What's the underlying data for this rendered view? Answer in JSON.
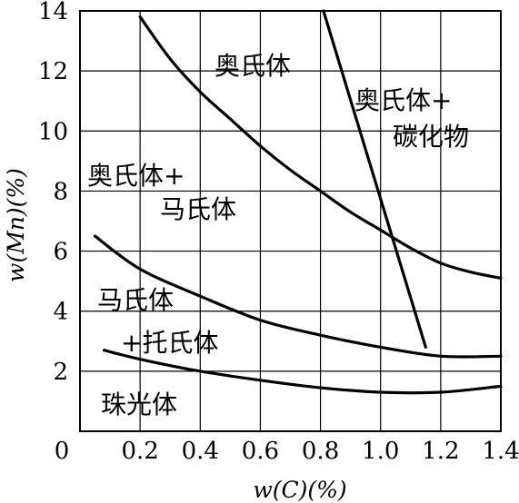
{
  "chart_data": {
    "type": "line",
    "title": "",
    "xlabel": "w(C)(%)",
    "ylabel": "w(Mn)(%)",
    "xlim": [
      0,
      1.4
    ],
    "ylim": [
      0,
      14
    ],
    "x_ticks": [
      "0",
      "0.2",
      "0.4",
      "0.6",
      "0.8",
      "1.0",
      "1.2",
      "1.4"
    ],
    "y_ticks": [
      "2",
      "4",
      "6",
      "8",
      "10",
      "12",
      "14"
    ],
    "grid": true,
    "series": [
      {
        "x": [
          0.2,
          0.3,
          0.4,
          0.5,
          0.6,
          0.7,
          0.8,
          0.9,
          1.0,
          1.1,
          1.2,
          1.3,
          1.4
        ],
        "y": [
          13.8,
          12.4,
          11.3,
          10.4,
          9.5,
          8.7,
          8.0,
          7.3,
          6.7,
          6.1,
          5.6,
          5.3,
          5.1
        ]
      },
      {
        "x": [
          0.81,
          1.15
        ],
        "y": [
          14.0,
          2.8
        ]
      },
      {
        "x": [
          0.05,
          0.2,
          0.4,
          0.6,
          0.8,
          1.0,
          1.2,
          1.4
        ],
        "y": [
          6.5,
          5.4,
          4.5,
          3.7,
          3.2,
          2.8,
          2.5,
          2.5
        ]
      },
      {
        "x": [
          0.08,
          0.2,
          0.4,
          0.6,
          0.8,
          1.0,
          1.2,
          1.4
        ],
        "y": [
          2.7,
          2.4,
          2.0,
          1.7,
          1.45,
          1.3,
          1.3,
          1.5
        ]
      }
    ],
    "region_labels": {
      "austenite": "奥氏体",
      "austenite_carbide_line1": "奥氏体+",
      "austenite_carbide_line2": "碳化物",
      "austenite_martensite_line1": "奥氏体+",
      "austenite_martensite_line2": "马氏体",
      "martensite_troostite_line1": "马氏体",
      "martensite_troostite_line2": "+托氏体",
      "pearlite": "珠光体"
    }
  }
}
